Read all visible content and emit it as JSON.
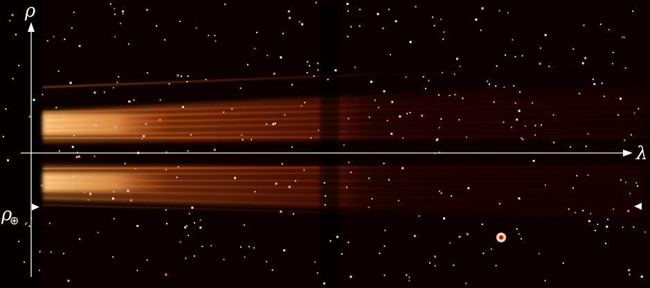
{
  "labels": {
    "rho": "ρ",
    "lambda": "λ",
    "rho_earth": "ρ",
    "rho_earth_sub": "⊕"
  }
}
